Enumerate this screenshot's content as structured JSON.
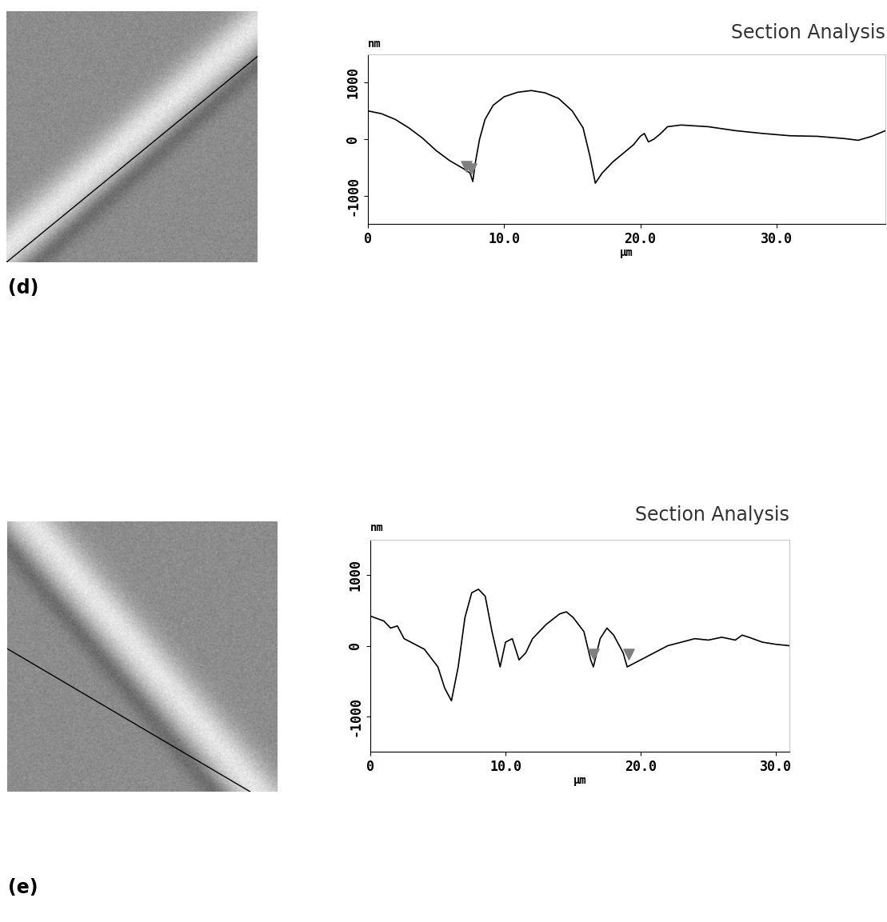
{
  "chart_data": [
    {
      "type": "line",
      "title": "Section Analysis",
      "y_label": "nm",
      "x_label": "μm",
      "annotations": [
        "(d)"
      ],
      "xlim": [
        0,
        38
      ],
      "ylim": [
        -1500,
        1500
      ],
      "xticks": [
        0,
        {
          "value": 10,
          "label": "10.0"
        },
        {
          "value": 20,
          "label": "20.0"
        },
        {
          "value": 30,
          "label": "30.0"
        }
      ],
      "yticks": [
        -1000,
        0,
        1000
      ],
      "grid": false,
      "series": [
        {
          "type": "line",
          "color": "#000000",
          "x": [
            0,
            1,
            2,
            3,
            4,
            5,
            6,
            7,
            7.5,
            7.7,
            7.9,
            8.2,
            8.6,
            9.2,
            10,
            11,
            12,
            13,
            14,
            15,
            15.8,
            16.3,
            16.7,
            17.2,
            18,
            19,
            19.5,
            20,
            20.3,
            20.6,
            21,
            21.5,
            22,
            23,
            25,
            27,
            29,
            31,
            33,
            35,
            36,
            37,
            38
          ],
          "values": [
            500,
            450,
            350,
            200,
            20,
            -200,
            -380,
            -520,
            -600,
            -750,
            -400,
            0,
            350,
            600,
            750,
            830,
            860,
            820,
            720,
            500,
            200,
            -300,
            -780,
            -600,
            -400,
            -200,
            -100,
            50,
            100,
            -50,
            0,
            100,
            220,
            250,
            220,
            150,
            100,
            60,
            50,
            10,
            -20,
            50,
            150
          ]
        },
        {
          "type": "scatter",
          "color": "#808080",
          "marker": "v",
          "x": [
            7.2,
            7.6
          ],
          "values": [
            -480,
            -520
          ]
        }
      ]
    },
    {
      "type": "line",
      "title": "Section Analysis",
      "y_label": "nm",
      "x_label": "μm",
      "annotations": [
        "(e)"
      ],
      "xlim": [
        0,
        31
      ],
      "ylim": [
        -1500,
        1500
      ],
      "xticks": [
        0,
        {
          "value": 10,
          "label": "10.0"
        },
        {
          "value": 20,
          "label": "20.0"
        },
        {
          "value": 30,
          "label": "30.0"
        }
      ],
      "yticks": [
        -1000,
        0,
        1000
      ],
      "grid": false,
      "series": [
        {
          "type": "line",
          "color": "#000000",
          "x": [
            0,
            1,
            1.5,
            2,
            2.5,
            3,
            4,
            5,
            5.5,
            6,
            6.5,
            7,
            7.5,
            8,
            8.5,
            9,
            9.6,
            10,
            10.5,
            11,
            11.5,
            12,
            13,
            14,
            14.5,
            15,
            15.8,
            16.3,
            16.5,
            17,
            17.5,
            18,
            18.7,
            19,
            19.5,
            20,
            21,
            22,
            23,
            24,
            25,
            26,
            27,
            27.5,
            28,
            29,
            30,
            31
          ],
          "values": [
            420,
            350,
            250,
            280,
            100,
            50,
            -50,
            -300,
            -600,
            -780,
            -300,
            400,
            750,
            800,
            700,
            200,
            -300,
            50,
            100,
            -200,
            -100,
            100,
            300,
            450,
            480,
            400,
            200,
            -200,
            -300,
            100,
            250,
            150,
            -100,
            -300,
            -250,
            -200,
            -100,
            0,
            50,
            100,
            80,
            120,
            80,
            150,
            120,
            50,
            20,
            0
          ]
        },
        {
          "type": "scatter",
          "color": "#808080",
          "marker": "v",
          "x": [
            16.5,
            19.1
          ],
          "values": [
            -120,
            -120
          ]
        }
      ]
    }
  ]
}
